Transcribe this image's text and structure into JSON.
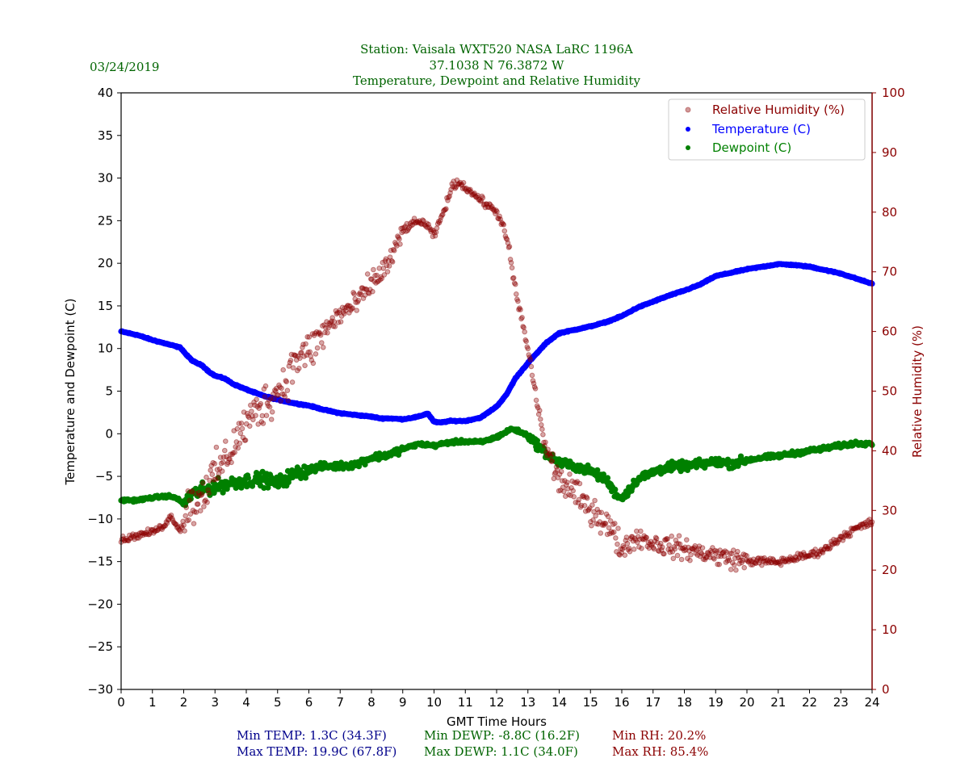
{
  "header": {
    "date": "03/24/2019",
    "title_lines": [
      "Station:  Vaisala WXT520  NASA LaRC 1196A",
      "37.1038 N 76.3872 W",
      "Temperature, Dewpoint and Relative Humidity"
    ]
  },
  "stats": {
    "min_temp": "Min TEMP: 1.3C (34.3F)",
    "max_temp": "Max TEMP: 19.9C (67.8F)",
    "min_dewp": "Min DEWP: -8.8C (16.2F)",
    "max_dewp": "Max DEWP: 1.1C (34.0F)",
    "min_rh": "Min RH: 20.2%",
    "max_rh": "Max RH: 85.4%"
  },
  "colors": {
    "temperature": "#0000ff",
    "dewpoint": "#008000",
    "rh": "#8b0000",
    "title": "#006400",
    "stat_temp": "#00008b"
  },
  "chart_data": {
    "type": "scatter",
    "title": "Temperature, Dewpoint and Relative Humidity",
    "xlabel": "GMT Time Hours",
    "ylabel": "Temperature and Dewpoint (C)",
    "y2label": "Relative Humidity (%)",
    "xlim": [
      0,
      24
    ],
    "ylim": [
      -30,
      40
    ],
    "y2lim": [
      0,
      100
    ],
    "xticks": [
      "0",
      "1",
      "2",
      "3",
      "4",
      "5",
      "6",
      "7",
      "8",
      "9",
      "10",
      "11",
      "12",
      "13",
      "14",
      "15",
      "16",
      "17",
      "18",
      "19",
      "20",
      "21",
      "22",
      "23",
      "24"
    ],
    "yticks": [
      "40",
      "35",
      "30",
      "25",
      "20",
      "15",
      "10",
      "5",
      "0",
      "−05",
      "−10",
      "−15",
      "−20",
      "−25",
      "−30"
    ],
    "yticks_display": [
      "40",
      "35",
      "30",
      "25",
      "20",
      "15",
      "10",
      "5",
      "0",
      "−5",
      "−10",
      "−15",
      "−20",
      "−25",
      "−30"
    ],
    "y2ticks": [
      "100",
      "90",
      "80",
      "70",
      "60",
      "50",
      "40",
      "30",
      "20",
      "10",
      "0"
    ],
    "legend_position": "top-right",
    "legend": [
      "Relative Humidity (%)",
      "Temperature (C)",
      "Dewpoint (C)"
    ],
    "series": [
      {
        "name": "Temperature (C)",
        "axis": "left",
        "x": [
          0,
          0.5,
          1,
          1.5,
          1.9,
          2.1,
          2.3,
          2.6,
          2.8,
          3.0,
          3.3,
          3.6,
          4.0,
          4.5,
          5.0,
          5.5,
          6.0,
          6.5,
          7.0,
          7.5,
          8.0,
          8.3,
          8.6,
          9.0,
          9.5,
          9.8,
          10.0,
          10.2,
          10.5,
          11.0,
          11.5,
          12.0,
          12.3,
          12.6,
          13.0,
          13.3,
          13.6,
          14.0,
          14.5,
          15.0,
          15.5,
          16.0,
          16.5,
          17.0,
          17.5,
          18.0,
          18.5,
          19.0,
          19.5,
          20.0,
          20.5,
          21.0,
          21.5,
          22.0,
          22.5,
          23.0,
          23.5,
          24.0
        ],
        "values": [
          12.0,
          11.6,
          11.0,
          10.5,
          10.1,
          9.2,
          8.5,
          8.0,
          7.3,
          6.8,
          6.5,
          5.8,
          5.2,
          4.5,
          4.0,
          3.6,
          3.3,
          2.8,
          2.4,
          2.2,
          2.0,
          1.8,
          1.8,
          1.7,
          2.0,
          2.4,
          1.4,
          1.3,
          1.5,
          1.5,
          1.9,
          3.2,
          4.5,
          6.5,
          8.3,
          9.5,
          10.7,
          11.8,
          12.2,
          12.6,
          13.1,
          13.8,
          14.8,
          15.5,
          16.2,
          16.8,
          17.5,
          18.5,
          18.9,
          19.3,
          19.6,
          19.9,
          19.8,
          19.6,
          19.2,
          18.8,
          18.2,
          17.6
        ]
      },
      {
        "name": "Dewpoint (C)",
        "axis": "left",
        "x": [
          0,
          0.5,
          1,
          1.5,
          1.8,
          2.0,
          2.2,
          2.5,
          3.0,
          3.5,
          4.0,
          4.5,
          5.0,
          5.5,
          6.0,
          6.5,
          7.0,
          7.5,
          8.0,
          8.5,
          9.0,
          9.5,
          10.0,
          10.5,
          11.0,
          11.5,
          12.0,
          12.5,
          13.0,
          13.3,
          13.6,
          14.0,
          14.5,
          15.0,
          15.5,
          15.8,
          16.0,
          16.5,
          17.0,
          17.5,
          18.0,
          18.5,
          19.0,
          19.5,
          20.0,
          20.5,
          21.0,
          21.5,
          22.0,
          22.5,
          23.0,
          23.5,
          24.0
        ],
        "values": [
          -7.8,
          -7.8,
          -7.5,
          -7.3,
          -7.6,
          -8.3,
          -7.2,
          -6.8,
          -6.2,
          -5.8,
          -5.5,
          -5.3,
          -5.8,
          -4.8,
          -4.2,
          -3.8,
          -3.8,
          -3.6,
          -2.8,
          -2.5,
          -1.8,
          -1.2,
          -1.4,
          -1.0,
          -0.9,
          -1.0,
          -0.4,
          0.6,
          -0.2,
          -1.3,
          -2.4,
          -3.4,
          -3.8,
          -4.4,
          -5.4,
          -7.0,
          -7.6,
          -5.4,
          -4.5,
          -3.9,
          -3.8,
          -3.6,
          -3.3,
          -3.5,
          -3.1,
          -2.8,
          -2.6,
          -2.3,
          -2.0,
          -1.7,
          -1.4,
          -1.1,
          -1.1
        ]
      },
      {
        "name": "Relative Humidity (%)",
        "axis": "right",
        "x": [
          0,
          0.5,
          1,
          1.3,
          1.6,
          1.9,
          2.1,
          2.4,
          2.8,
          3.2,
          3.6,
          4.0,
          4.4,
          4.8,
          5.2,
          5.6,
          6.0,
          6.5,
          7.0,
          7.5,
          8.0,
          8.5,
          8.8,
          9.0,
          9.3,
          9.6,
          9.8,
          10.0,
          10.3,
          10.6,
          10.8,
          11.0,
          11.5,
          12.0,
          12.2,
          12.4,
          12.6,
          12.8,
          13.0,
          13.2,
          13.4,
          13.6,
          14.0,
          14.4,
          14.8,
          15.1,
          15.4,
          15.7,
          16.0,
          16.3,
          16.6,
          17.0,
          17.5,
          18.0,
          18.5,
          19.0,
          19.5,
          20.0,
          20.5,
          21.0,
          21.5,
          22.0,
          22.5,
          23.0,
          23.5,
          24.0
        ],
        "values": [
          25.0,
          25.8,
          26.4,
          27.2,
          29.0,
          26.6,
          30.5,
          31.5,
          34.5,
          37.5,
          41.0,
          44.5,
          47.0,
          49.0,
          51.0,
          55.5,
          56.5,
          60.0,
          63.0,
          64.5,
          68.0,
          71.0,
          74.0,
          77.0,
          78.0,
          78.5,
          77.5,
          76.0,
          80.0,
          84.5,
          85.0,
          84.2,
          82.0,
          80.0,
          78.0,
          73.5,
          67.0,
          62.0,
          57.0,
          51.0,
          45.0,
          40.0,
          35.0,
          33.5,
          31.0,
          30.0,
          28.5,
          26.5,
          23.5,
          25.0,
          25.5,
          24.5,
          24.0,
          23.5,
          23.0,
          22.5,
          22.0,
          21.5,
          21.5,
          21.3,
          22.0,
          22.5,
          23.5,
          25.5,
          27.0,
          28.0
        ]
      }
    ]
  }
}
